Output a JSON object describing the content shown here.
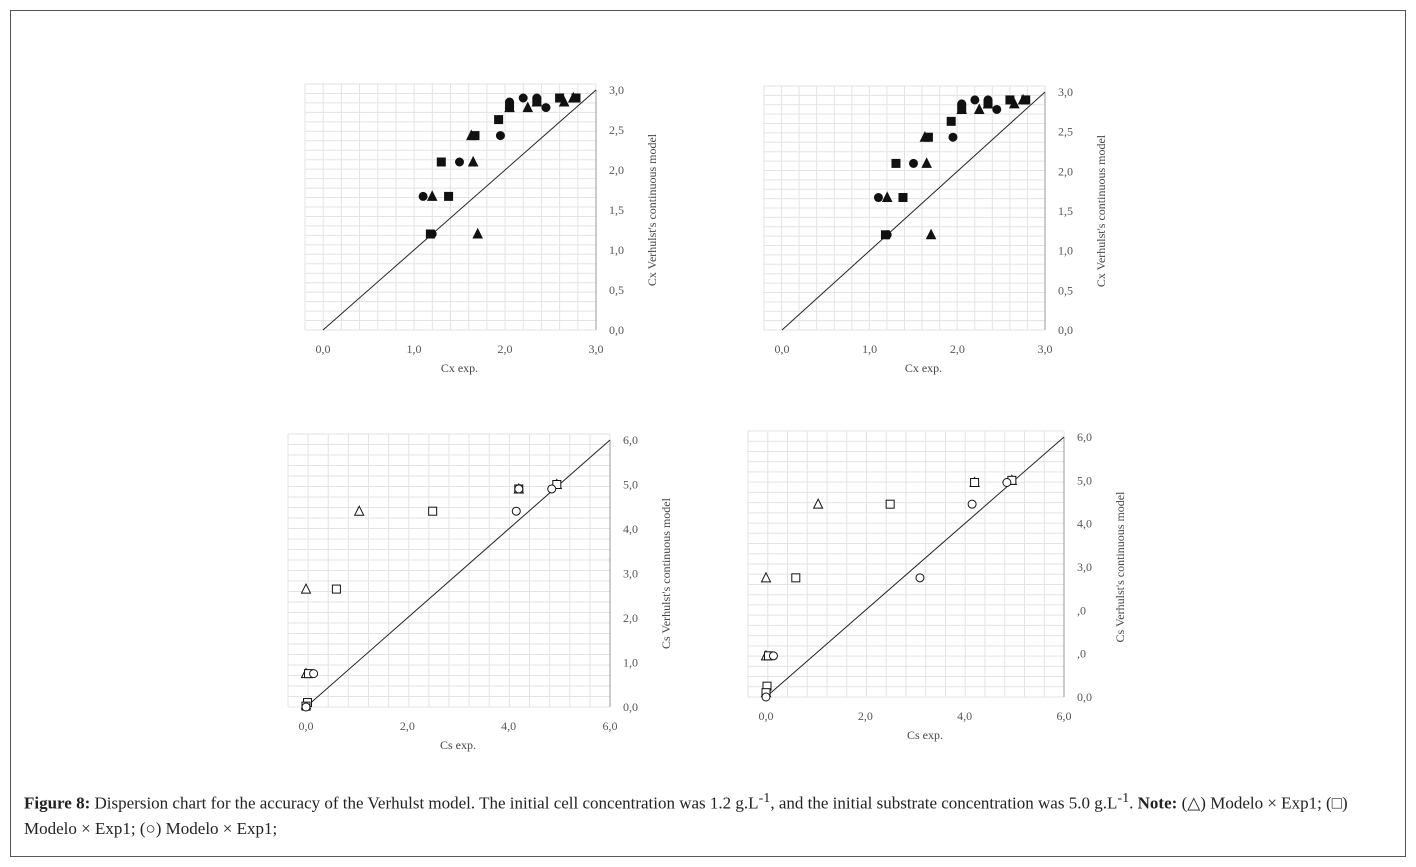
{
  "figure": {
    "caption_label": "Figure 8:",
    "caption_text": "Dispersion chart for the accuracy of the Verhulst model. The initial cell concentration was 1.2 g.L",
    "caption_sup1": "-1",
    "caption_text2": ", and the initial substrate concentration was 5.0 g.L",
    "caption_sup2": "-1",
    "caption_text3": ". ",
    "note_label": "Note:",
    "note_text": " (△) Modelo × Exp1; (□) Modelo × Exp1; (○) Modelo × Exp1;"
  },
  "colors": {
    "marker": "#111111",
    "grid": "#e3e3e3",
    "axis": "#9a9a9a",
    "line": "#222222"
  },
  "chart_data": [
    {
      "type": "scatter",
      "xlabel": "Cx  exp.",
      "ylabel": "Cx  Verhulst's continuous model",
      "xlim": [
        0,
        3
      ],
      "ylim": [
        0,
        3
      ],
      "x_ticks": [
        "0,0",
        "1,0",
        "2,0",
        "3,0"
      ],
      "y_ticks": [
        "0,0",
        "0,5",
        "1,0",
        "1,5",
        "2,0",
        "2,5",
        "3,0"
      ],
      "grid": true,
      "identity_line": true,
      "filled": true,
      "series": [
        {
          "marker": "circle",
          "points": [
            [
              1.1,
              1.67
            ],
            [
              1.5,
              2.1
            ],
            [
              1.95,
              2.43
            ],
            [
              2.05,
              2.85
            ],
            [
              2.2,
              2.9
            ],
            [
              2.35,
              2.9
            ],
            [
              2.45,
              2.78
            ],
            [
              1.2,
              1.2
            ]
          ]
        },
        {
          "marker": "triangle",
          "points": [
            [
              1.2,
              1.67
            ],
            [
              1.65,
              2.1
            ],
            [
              1.7,
              1.2
            ],
            [
              1.63,
              2.43
            ],
            [
              2.05,
              2.78
            ],
            [
              2.25,
              2.78
            ],
            [
              2.35,
              2.85
            ],
            [
              2.65,
              2.85
            ],
            [
              2.75,
              2.9
            ]
          ]
        },
        {
          "marker": "square",
          "points": [
            [
              1.3,
              2.1
            ],
            [
              1.38,
              1.67
            ],
            [
              1.67,
              2.43
            ],
            [
              1.93,
              2.63
            ],
            [
              2.05,
              2.8
            ],
            [
              2.35,
              2.85
            ],
            [
              2.6,
              2.9
            ],
            [
              2.78,
              2.9
            ],
            [
              1.18,
              1.2
            ]
          ]
        }
      ]
    },
    {
      "type": "scatter",
      "xlabel": "Cx  exp.",
      "ylabel": "Cx  Verhulst's continuous model",
      "xlim": [
        0,
        3
      ],
      "ylim": [
        0,
        3
      ],
      "x_ticks": [
        "0,0",
        "1,0",
        "2,0",
        "3,0"
      ],
      "y_ticks": [
        "0,0",
        "0,5",
        "1,0",
        "1,5",
        "2,0",
        "2,5",
        "3,0"
      ],
      "grid": true,
      "identity_line": true,
      "filled": true,
      "series": [
        {
          "marker": "circle",
          "points": [
            [
              1.1,
              1.67
            ],
            [
              1.5,
              2.1
            ],
            [
              1.95,
              2.43
            ],
            [
              2.05,
              2.85
            ],
            [
              2.2,
              2.9
            ],
            [
              2.35,
              2.9
            ],
            [
              2.45,
              2.78
            ],
            [
              1.2,
              1.2
            ]
          ]
        },
        {
          "marker": "triangle",
          "points": [
            [
              1.2,
              1.67
            ],
            [
              1.65,
              2.1
            ],
            [
              1.7,
              1.2
            ],
            [
              1.63,
              2.43
            ],
            [
              2.05,
              2.78
            ],
            [
              2.25,
              2.78
            ],
            [
              2.35,
              2.85
            ],
            [
              2.65,
              2.85
            ],
            [
              2.75,
              2.9
            ]
          ]
        },
        {
          "marker": "square",
          "points": [
            [
              1.3,
              2.1
            ],
            [
              1.38,
              1.67
            ],
            [
              1.67,
              2.43
            ],
            [
              1.93,
              2.63
            ],
            [
              2.05,
              2.8
            ],
            [
              2.35,
              2.85
            ],
            [
              2.6,
              2.9
            ],
            [
              2.78,
              2.9
            ],
            [
              1.18,
              1.2
            ]
          ]
        }
      ]
    },
    {
      "type": "scatter",
      "xlabel": "Cs  exp.",
      "ylabel": "Cs Verhulst's continuous model",
      "xlim": [
        0,
        6
      ],
      "ylim": [
        0,
        6
      ],
      "x_ticks": [
        "0,0",
        "2,0",
        "4,0",
        "6,0"
      ],
      "y_ticks": [
        "0,0",
        "1,0",
        "2,0",
        "3,0",
        "4,0",
        "5,0",
        "6,0"
      ],
      "grid": true,
      "identity_line": true,
      "filled": false,
      "series": [
        {
          "marker": "triangle",
          "points": [
            [
              0.0,
              2.65
            ],
            [
              1.05,
              4.4
            ],
            [
              0.0,
              0.75
            ],
            [
              0.0,
              0.05
            ],
            [
              4.2,
              4.9
            ],
            [
              4.95,
              5.0
            ]
          ]
        },
        {
          "marker": "square",
          "points": [
            [
              0.6,
              2.65
            ],
            [
              2.5,
              4.4
            ],
            [
              0.05,
              0.75
            ],
            [
              0.03,
              0.1
            ],
            [
              0.0,
              0.02
            ],
            [
              4.2,
              4.9
            ],
            [
              4.95,
              5.0
            ]
          ]
        },
        {
          "marker": "circle",
          "points": [
            [
              0.15,
              0.75
            ],
            [
              4.15,
              4.4
            ],
            [
              4.85,
              4.9
            ],
            [
              4.2,
              4.9
            ],
            [
              0.0,
              0.0
            ]
          ]
        }
      ]
    },
    {
      "type": "scatter",
      "xlabel": "Cs  exp.",
      "ylabel": "Cs Verhulst's continuous model",
      "xlim": [
        0,
        6
      ],
      "ylim": [
        0,
        6
      ],
      "x_ticks": [
        "0,0",
        "2,0",
        "4,0",
        "6,0"
      ],
      "y_ticks": [
        "0,0",
        ",0",
        ",0",
        "3,0",
        "4,0",
        "5,0",
        "6,0"
      ],
      "grid": true,
      "identity_line": true,
      "filled": false,
      "series": [
        {
          "marker": "triangle",
          "points": [
            [
              0.0,
              2.75
            ],
            [
              1.05,
              4.45
            ],
            [
              0.0,
              0.95
            ],
            [
              0.0,
              0.1
            ],
            [
              4.2,
              4.95
            ],
            [
              4.95,
              5.0
            ]
          ]
        },
        {
          "marker": "square",
          "points": [
            [
              0.6,
              2.75
            ],
            [
              2.5,
              4.45
            ],
            [
              0.05,
              0.95
            ],
            [
              0.02,
              0.25
            ],
            [
              0.0,
              0.1
            ],
            [
              4.2,
              4.95
            ],
            [
              4.95,
              5.0
            ]
          ]
        },
        {
          "marker": "circle",
          "points": [
            [
              0.15,
              0.95
            ],
            [
              3.1,
              2.75
            ],
            [
              4.15,
              4.45
            ],
            [
              4.85,
              4.95
            ],
            [
              0.0,
              0.0
            ]
          ]
        }
      ]
    }
  ]
}
